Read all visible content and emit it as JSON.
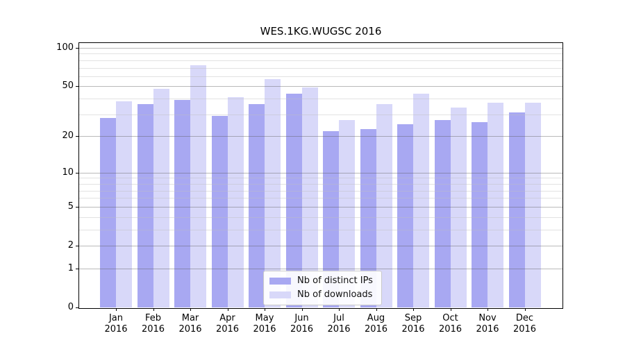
{
  "chart_data": {
    "type": "bar",
    "title": "WES.1KG.WUGSC 2016",
    "xlabel": "",
    "ylabel": "",
    "categories": [
      "Jan 2016",
      "Feb 2016",
      "Mar 2016",
      "Apr 2016",
      "May 2016",
      "Jun 2016",
      "Jul 2016",
      "Aug 2016",
      "Sep 2016",
      "Oct 2016",
      "Nov 2016",
      "Dec 2016"
    ],
    "x_tick_month_line": [
      "Jan",
      "Feb",
      "Mar",
      "Apr",
      "May",
      "Jun",
      "Jul",
      "Aug",
      "Sep",
      "Oct",
      "Nov",
      "Dec"
    ],
    "x_tick_year_line": "2016",
    "series": [
      {
        "name": "Nb of distinct IPs",
        "color": "#a8a8f2",
        "values": [
          28,
          36,
          39,
          29,
          36,
          44,
          22,
          23,
          25,
          27,
          26,
          31
        ]
      },
      {
        "name": "Nb of downloads",
        "color": "#d8d8f9",
        "values": [
          38,
          48,
          73,
          41,
          57,
          49,
          27,
          36,
          44,
          34,
          37,
          37
        ]
      }
    ],
    "y_scale": "log10(1+v)",
    "ylim": [
      0,
      110
    ],
    "y_major_ticks": [
      100,
      50,
      20,
      10,
      5,
      2,
      1,
      0
    ],
    "y_minor_gridlines": [
      3,
      4,
      6,
      7,
      8,
      9,
      30,
      40,
      60,
      70,
      80,
      90
    ],
    "grid": true,
    "legend_position": "lower center",
    "background_color": "#ffffff",
    "axis_color": "#000000"
  }
}
